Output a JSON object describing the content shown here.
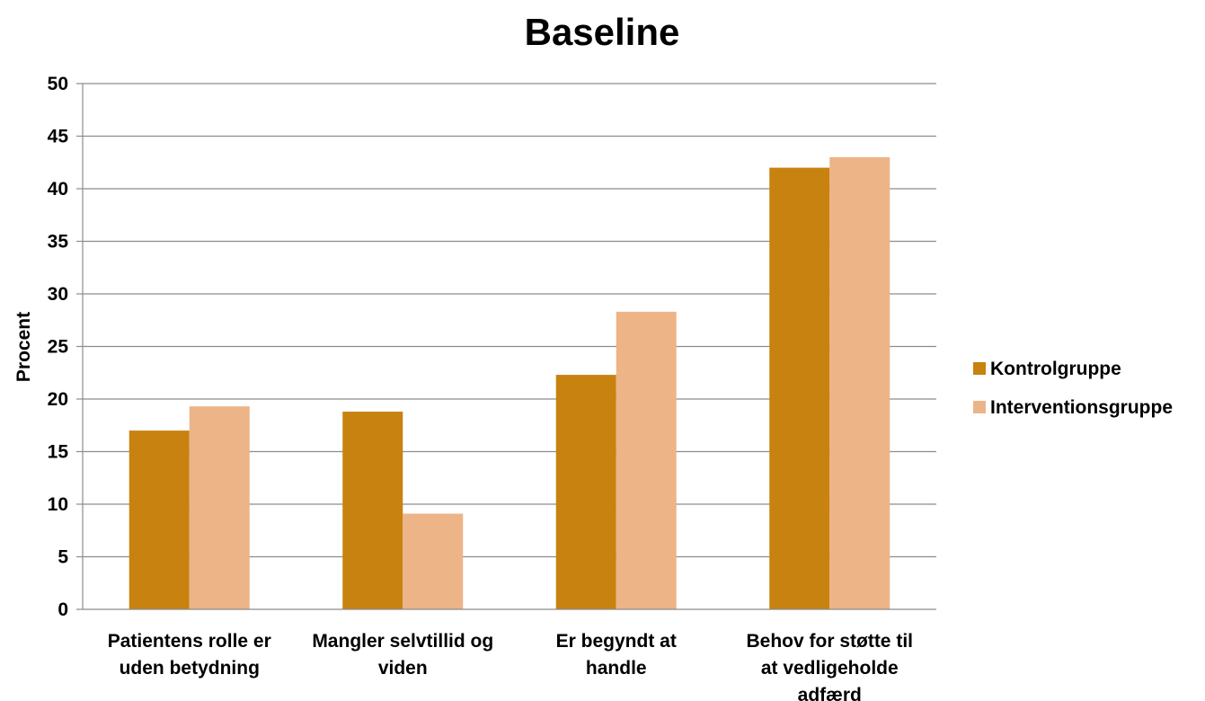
{
  "chart_data": {
    "type": "bar",
    "title": "Baseline",
    "ylabel": "Procent",
    "xlabel": "",
    "ylim": [
      0,
      50
    ],
    "ytick_step": 5,
    "grid": true,
    "legend_position": "right",
    "categories": [
      [
        "Patientens rolle er",
        "uden betydning"
      ],
      [
        "Mangler selvtillid og",
        "viden"
      ],
      [
        "Er begyndt at",
        "handle"
      ],
      [
        "Behov for støtte til",
        "at vedligeholde",
        "adfærd"
      ]
    ],
    "series": [
      {
        "name": "Kontrolgruppe",
        "color": "#c8820f",
        "values": [
          17.0,
          18.8,
          22.3,
          42.0
        ]
      },
      {
        "name": "Interventionsgruppe",
        "color": "#edb488",
        "values": [
          19.3,
          9.1,
          28.3,
          43.0
        ]
      }
    ]
  }
}
